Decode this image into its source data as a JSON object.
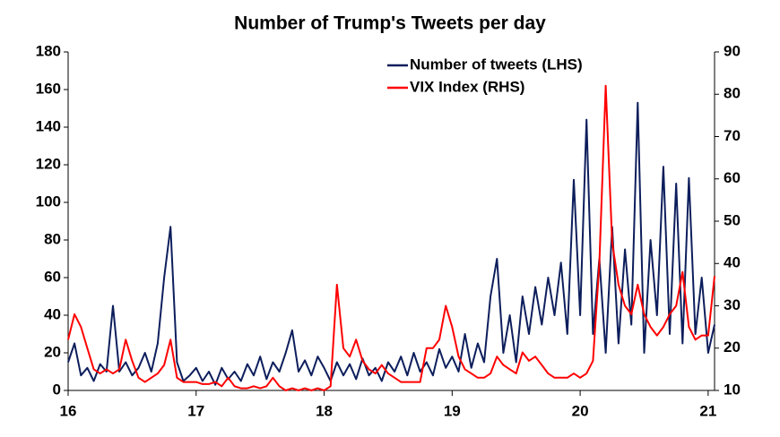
{
  "chart_data": {
    "type": "line",
    "title": "Number of Trump's Tweets per day",
    "x": [
      16.0,
      16.05,
      16.1,
      16.15,
      16.2,
      16.25,
      16.3,
      16.35,
      16.4,
      16.45,
      16.5,
      16.55,
      16.6,
      16.65,
      16.7,
      16.75,
      16.8,
      16.85,
      16.9,
      16.95,
      17.0,
      17.05,
      17.1,
      17.15,
      17.2,
      17.25,
      17.3,
      17.35,
      17.4,
      17.45,
      17.5,
      17.55,
      17.6,
      17.65,
      17.7,
      17.75,
      17.8,
      17.85,
      17.9,
      17.95,
      18.0,
      18.05,
      18.1,
      18.15,
      18.2,
      18.25,
      18.3,
      18.35,
      18.4,
      18.45,
      18.5,
      18.55,
      18.6,
      18.65,
      18.7,
      18.75,
      18.8,
      18.85,
      18.9,
      18.95,
      19.0,
      19.05,
      19.1,
      19.15,
      19.2,
      19.25,
      19.3,
      19.35,
      19.4,
      19.45,
      19.5,
      19.55,
      19.6,
      19.65,
      19.7,
      19.75,
      19.8,
      19.85,
      19.9,
      19.95,
      20.0,
      20.05,
      20.1,
      20.15,
      20.2,
      20.25,
      20.3,
      20.35,
      20.4,
      20.45,
      20.5,
      20.55,
      20.6,
      20.65,
      20.7,
      20.75,
      20.8,
      20.85,
      20.9,
      20.95,
      21.0,
      21.05
    ],
    "series": [
      {
        "name": "Number of tweets (LHS)",
        "color": "#0d1e5c",
        "axis": "y",
        "values": [
          15,
          25,
          8,
          12,
          5,
          14,
          10,
          45,
          10,
          15,
          8,
          12,
          20,
          10,
          25,
          60,
          87,
          15,
          5,
          8,
          12,
          5,
          10,
          3,
          12,
          6,
          10,
          5,
          14,
          8,
          18,
          6,
          15,
          10,
          20,
          32,
          10,
          16,
          8,
          18,
          12,
          5,
          15,
          8,
          14,
          6,
          17,
          8,
          12,
          5,
          15,
          10,
          18,
          8,
          20,
          10,
          15,
          8,
          22,
          12,
          18,
          10,
          30,
          12,
          25,
          15,
          50,
          70,
          20,
          40,
          15,
          50,
          30,
          55,
          35,
          60,
          40,
          68,
          30,
          112,
          40,
          144,
          30,
          70,
          20,
          87,
          25,
          75,
          35,
          153,
          20,
          80,
          40,
          119,
          30,
          110,
          25,
          113,
          30,
          60,
          20,
          35
        ]
      },
      {
        "name": "VIX Index (RHS)",
        "color": "#ff0000",
        "axis": "y2",
        "values": [
          22,
          28,
          25,
          20,
          15,
          14,
          15,
          14,
          15,
          22,
          17,
          13,
          12,
          13,
          14,
          16,
          22,
          13,
          12,
          12,
          12,
          11.5,
          11.5,
          12,
          11,
          13,
          11,
          10.5,
          10.5,
          11,
          10.5,
          11,
          13,
          11,
          10,
          10.5,
          10,
          10.5,
          10,
          10.5,
          10,
          11,
          35,
          20,
          18,
          22,
          17,
          15,
          14,
          16,
          14,
          13,
          12,
          12,
          12,
          12,
          20,
          20,
          22,
          30,
          25,
          18,
          15,
          14,
          13,
          13,
          14,
          18,
          16,
          15,
          14,
          19,
          17,
          18,
          16,
          14,
          13,
          13,
          13,
          14,
          13,
          14,
          17,
          40,
          82,
          45,
          35,
          30,
          28,
          35,
          28,
          25,
          23,
          25,
          28,
          30,
          38,
          25,
          22,
          23,
          23,
          37
        ]
      }
    ],
    "xlim": [
      16,
      21.05
    ],
    "xticks": [
      16,
      17,
      18,
      19,
      20,
      21
    ],
    "ylim": [
      0,
      180
    ],
    "yticks": [
      0,
      20,
      40,
      60,
      80,
      100,
      120,
      140,
      160,
      180
    ],
    "y2lim": [
      10,
      90
    ],
    "y2ticks": [
      10,
      20,
      30,
      40,
      50,
      60,
      70,
      80,
      90
    ]
  }
}
